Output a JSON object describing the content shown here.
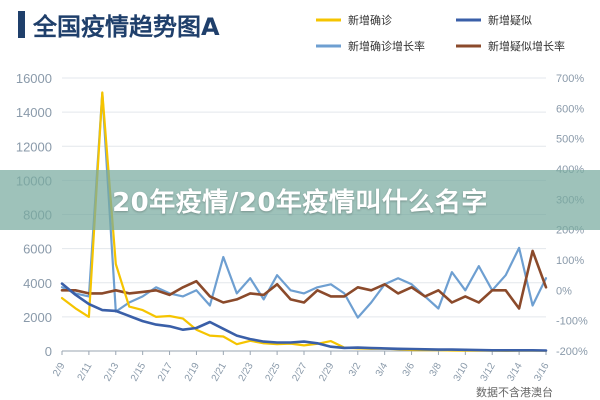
{
  "overlay": {
    "caption": "20年疫情/20年疫情叫什么名字"
  },
  "chart_data": {
    "type": "line",
    "title": "全国疫情趋势图A",
    "source_note": "数据不含港澳台",
    "colors": {
      "title_bar": "#1f3f6b",
      "title": "#1f3f6b",
      "confirmed": "#f5c400",
      "suspected": "#3a5fa8",
      "confirmed_growth": "#6e9fd1",
      "suspected_growth": "#8b4a2b"
    },
    "legend": [
      {
        "key": "confirmed",
        "label": "新增确诊",
        "color": "#f5c400"
      },
      {
        "key": "suspected",
        "label": "新增疑似",
        "color": "#3a5fa8"
      },
      {
        "key": "confirmed_growth",
        "label": "新增确诊增长率",
        "color": "#6e9fd1"
      },
      {
        "key": "suspected_growth",
        "label": "新增疑似增长率",
        "color": "#8b4a2b"
      }
    ],
    "x_tick_labels": [
      "2/9",
      "2/11",
      "2/13",
      "2/15",
      "2/17",
      "2/19",
      "2/21",
      "2/23",
      "2/25",
      "2/27",
      "2/29",
      "3/2",
      "3/4",
      "3/6",
      "3/8",
      "3/10",
      "3/12",
      "3/14",
      "3/16"
    ],
    "x_count": 37,
    "y_left": {
      "ticks": [
        "0",
        "2000",
        "4000",
        "6000",
        "8000",
        "10000",
        "12000",
        "14000",
        "16000"
      ],
      "range": [
        0,
        16000
      ]
    },
    "y_right": {
      "ticks": [
        "-200%",
        "-100%",
        "0%",
        "100%",
        "200%",
        "300%",
        "400%",
        "500%",
        "600%",
        "700%"
      ],
      "range": [
        -200,
        700
      ]
    },
    "series": [
      {
        "key": "confirmed",
        "axis": "left",
        "values": [
          3100,
          2500,
          2000,
          15150,
          5100,
          2600,
          2400,
          2000,
          2050,
          1900,
          1250,
          900,
          850,
          400,
          600,
          450,
          400,
          430,
          330,
          420,
          580,
          200,
          150,
          130,
          140,
          100,
          60,
          50,
          45,
          30,
          25,
          20,
          15,
          10,
          15,
          20,
          20
        ]
      },
      {
        "key": "suspected",
        "axis": "left",
        "values": [
          3950,
          3300,
          2750,
          2400,
          2350,
          2050,
          1750,
          1550,
          1450,
          1250,
          1350,
          1700,
          1300,
          900,
          700,
          550,
          500,
          500,
          550,
          450,
          250,
          180,
          200,
          170,
          150,
          130,
          120,
          100,
          80,
          80,
          70,
          50,
          40,
          40,
          40,
          40,
          30
        ]
      },
      {
        "key": "confirmed_growth",
        "axis": "right",
        "values": [
          10,
          -10,
          -20,
          650,
          -70,
          -40,
          -20,
          10,
          -10,
          -20,
          0,
          -50,
          110,
          -10,
          40,
          -30,
          50,
          0,
          -10,
          10,
          20,
          -10,
          -90,
          -40,
          20,
          40,
          20,
          -20,
          -60,
          60,
          0,
          80,
          0,
          50,
          140,
          -50,
          40
        ]
      },
      {
        "key": "suspected_growth",
        "axis": "right",
        "values": [
          0,
          0,
          -10,
          -10,
          0,
          -10,
          -5,
          0,
          -15,
          10,
          30,
          -20,
          -40,
          -30,
          -10,
          -15,
          20,
          -30,
          -40,
          0,
          -20,
          -20,
          10,
          0,
          20,
          -10,
          10,
          -20,
          0,
          -40,
          -20,
          -40,
          0,
          0,
          -60,
          130,
          10
        ]
      }
    ]
  }
}
